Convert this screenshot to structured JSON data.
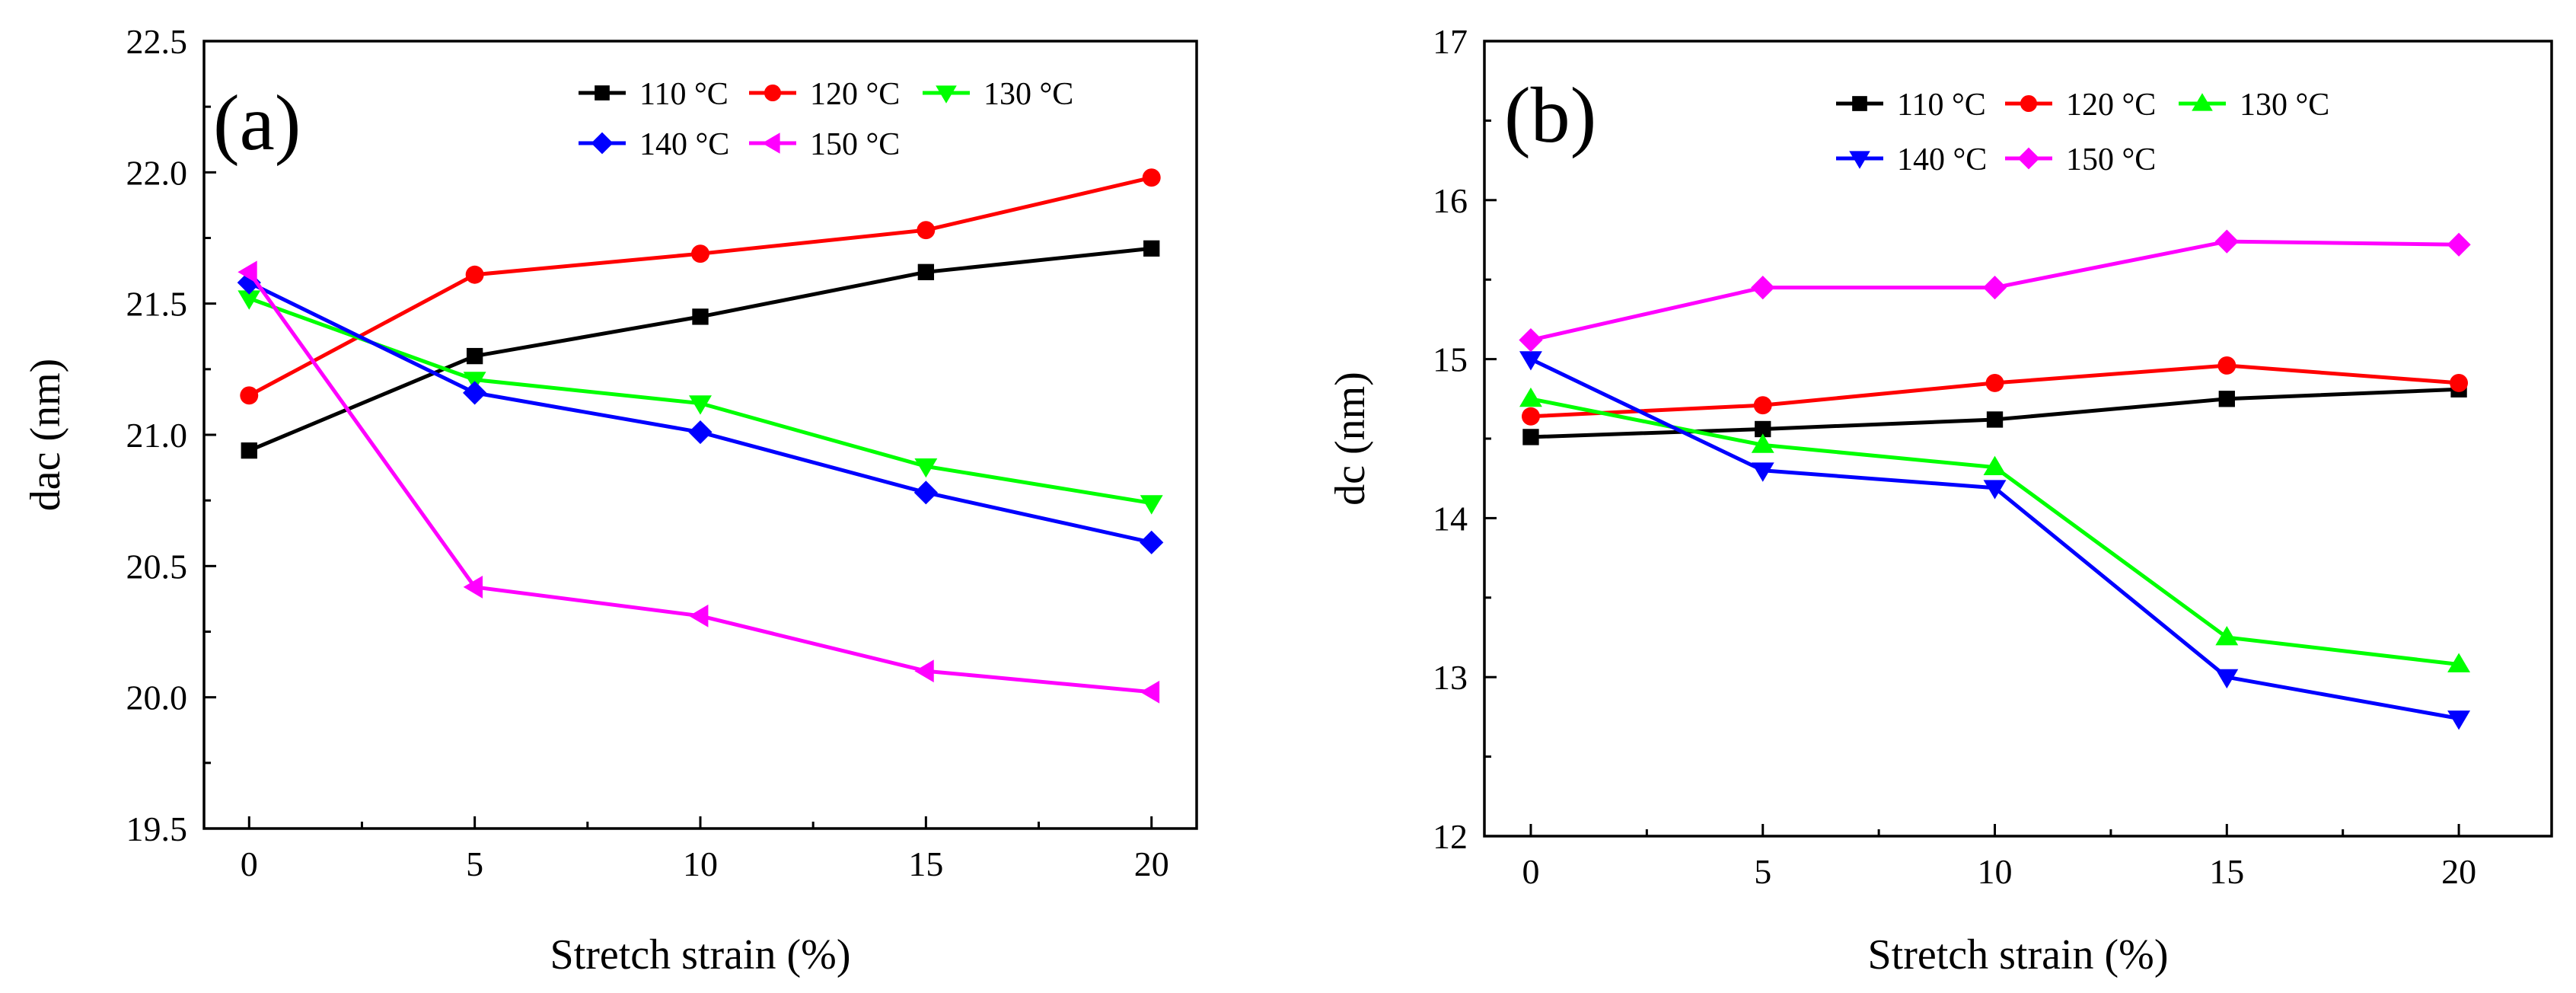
{
  "chart_data": [
    {
      "type": "line",
      "panel_label": "(a)",
      "xlabel": "Stretch strain (%)",
      "ylabel": "dac (nm)",
      "x": [
        0,
        5,
        10,
        15,
        20
      ],
      "xlim": [
        -1,
        21
      ],
      "ylim": [
        19.5,
        22.5
      ],
      "xticks": [
        0,
        5,
        10,
        15,
        20
      ],
      "xtick_labels": [
        "0",
        "5",
        "10",
        "15",
        "20"
      ],
      "yticks": [
        19.5,
        20.0,
        20.5,
        21.0,
        21.5,
        22.0,
        22.5
      ],
      "ytick_labels": [
        "19.5",
        "20.0",
        "20.5",
        "21.0",
        "21.5",
        "22.0",
        "22.5"
      ],
      "legend_placement": "top-right",
      "series": [
        {
          "name": "110 °C",
          "color": "#000000",
          "marker": "square",
          "values": [
            20.94,
            21.3,
            21.45,
            21.62,
            21.71
          ]
        },
        {
          "name": "120 °C",
          "color": "#ff0000",
          "marker": "circle",
          "values": [
            21.15,
            21.61,
            21.69,
            21.78,
            21.98
          ]
        },
        {
          "name": "130 °C",
          "color": "#00ff00",
          "marker": "triangle-down",
          "values": [
            21.52,
            21.21,
            21.12,
            20.88,
            20.74
          ]
        },
        {
          "name": "140 °C",
          "color": "#0000ff",
          "marker": "diamond",
          "values": [
            21.58,
            21.16,
            21.01,
            20.78,
            20.59
          ]
        },
        {
          "name": "150 °C",
          "color": "#ff00ff",
          "marker": "triangle-left",
          "values": [
            21.62,
            20.42,
            20.31,
            20.1,
            20.02
          ]
        }
      ]
    },
    {
      "type": "line",
      "panel_label": "(b)",
      "xlabel": "Stretch strain (%)",
      "ylabel": "dc (nm)",
      "x": [
        0,
        5,
        10,
        15,
        20
      ],
      "xlim": [
        -1,
        22
      ],
      "ylim": [
        12,
        17
      ],
      "xticks": [
        0,
        5,
        10,
        15,
        20
      ],
      "xtick_labels": [
        "0",
        "5",
        "10",
        "15",
        "20"
      ],
      "yticks": [
        12,
        13,
        14,
        15,
        16,
        17
      ],
      "ytick_labels": [
        "12",
        "13",
        "14",
        "15",
        "16",
        "17"
      ],
      "legend_placement": "top-right",
      "series": [
        {
          "name": "110 °C",
          "color": "#000000",
          "marker": "square",
          "values": [
            14.51,
            14.56,
            14.62,
            14.75,
            14.81
          ]
        },
        {
          "name": "120 °C",
          "color": "#ff0000",
          "marker": "circle",
          "values": [
            14.64,
            14.71,
            14.85,
            14.96,
            14.85
          ]
        },
        {
          "name": "130 °C",
          "color": "#00ff00",
          "marker": "triangle-up",
          "values": [
            14.75,
            14.46,
            14.32,
            13.25,
            13.08
          ]
        },
        {
          "name": "140 °C",
          "color": "#0000ff",
          "marker": "triangle-down",
          "values": [
            15.0,
            14.3,
            14.19,
            13.0,
            12.74
          ]
        },
        {
          "name": "150 °C",
          "color": "#ff00ff",
          "marker": "diamond",
          "values": [
            15.12,
            15.45,
            15.45,
            15.74,
            15.72
          ]
        }
      ]
    }
  ]
}
